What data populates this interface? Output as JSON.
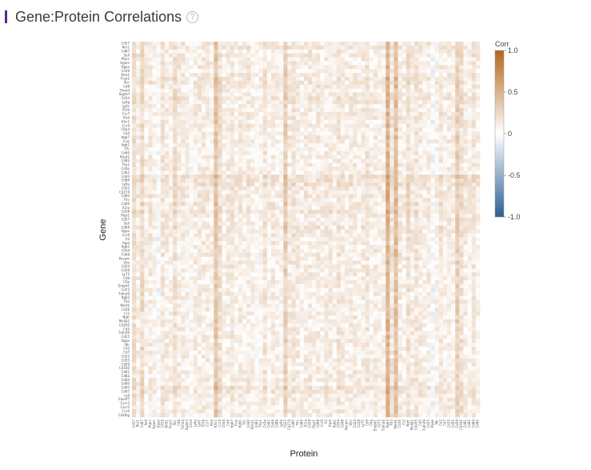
{
  "header": {
    "title": "Gene:Protein Correlations",
    "help_glyph": "?"
  },
  "chart_data": {
    "type": "heatmap",
    "xlabel": "Protein",
    "ylabel": "Gene",
    "colorbar": {
      "title": "Corr",
      "range": [
        -1.0,
        1.0
      ],
      "ticks": [
        "1.0",
        "0.5",
        "0",
        "-0.5",
        "-1.0"
      ],
      "colors": {
        "neg": "#2b5f94",
        "zero": "#ffffff",
        "pos": "#b5651d"
      }
    },
    "n_rows": 96,
    "n_cols": 85,
    "row_labels": [
      "Cd27",
      "Ncr1",
      "Cd87",
      "Sell",
      "Ptprc",
      "Itgam",
      "Itgax",
      "Cd19",
      "Klrb1",
      "Fcgr2",
      "Ncr",
      "Cd8",
      "Timd4",
      "Siglecf",
      "Cd1d",
      "Ly6g",
      "Ly6c",
      "Il2rb",
      "Ccr7",
      "Klrd",
      "Klrc1",
      "Ccr4",
      "Ctla4",
      "Cd4",
      "Itgb7",
      "Icos",
      "Itgb1",
      "Il7r",
      "Cd40",
      "Pdcd1",
      "Cd83",
      "Thy1",
      "Cd3e",
      "Cd62",
      "Cd44",
      "Cd86",
      "Ly6a",
      "Cd22",
      "Cd274",
      "Cd80",
      "Tfrc",
      "Cd69",
      "Il2ra",
      "Cd28",
      "Ptgr1",
      "Cd27",
      "Sell",
      "Cd68",
      "Itgax",
      "Ccr9",
      "Il2",
      "Itgal",
      "Itgb2",
      "Cd34",
      "Cd48",
      "Pecam",
      "Vim",
      "Cd24",
      "Cd38",
      "Ly75",
      "Cd9",
      "Ctla",
      "Entpd1",
      "Cd73",
      "Tnfrsf4",
      "Itgb3",
      "Flt3",
      "Mertk",
      "Cd36",
      "Cr2",
      "Ngfr",
      "Ms4a1",
      "Cd200",
      "Cd5",
      "Tnfrsf9",
      "Cd25",
      "Itgae",
      "Il6r",
      "Cd2",
      "Cd7",
      "Cd33",
      "Cd55",
      "Cd59",
      "Cd160",
      "Cd81",
      "Cd82",
      "Cd84",
      "Cd90",
      "Cd93",
      "Cd97",
      "Ly9",
      "Slamf7",
      "Cxcr3",
      "Cxcr5",
      "Ccr6",
      "Cd40lg"
    ],
    "col_labels": [
      "Cd27",
      "Ncr1",
      "Cd87",
      "Sell",
      "Ptprc",
      "Itgam",
      "Itgax",
      "Cd19",
      "Klrb1",
      "Fcgr2",
      "Ncr",
      "Cd8",
      "Timd4",
      "Siglecf",
      "Cd1d",
      "Ly6g",
      "Ly6c",
      "Il2rb",
      "Ccr7",
      "Klrd",
      "Klrc1",
      "Ccr4",
      "Ctla4",
      "Cd4",
      "Itgb7",
      "Icos",
      "Itgb1",
      "Il7r",
      "Cd40",
      "Pdcd1",
      "Cd83",
      "Thy1",
      "Cd3e",
      "Cd62",
      "Cd44",
      "Cd86",
      "Ly6a",
      "Cd22",
      "Cd274",
      "Cd80",
      "Tfrc",
      "Cd69",
      "Il2ra",
      "Cd28",
      "Ptgr1",
      "Cd68",
      "Ccr9",
      "Il2",
      "Itgal",
      "Itgb2",
      "Cd34",
      "Cd48",
      "Pecam",
      "Vim",
      "Cd24",
      "Cd38",
      "Ly75",
      "Cd9",
      "Ctla",
      "Entpd1",
      "Cd73",
      "Tnfrsf4",
      "Itgb3",
      "Flt3",
      "Mertk",
      "Cd36",
      "Cr2",
      "Ngfr",
      "Ms4a1",
      "Cd200",
      "Cd5",
      "Tnfrsf9",
      "Cd25",
      "Itgae",
      "Il6r",
      "Cd2",
      "Cd7",
      "Cd33",
      "Cd55",
      "Cd59",
      "Cd160",
      "Cd81",
      "Cd82",
      "Cd84",
      "Cd90"
    ],
    "column_strength": [
      0.2,
      0.1,
      0.25,
      0.05,
      0.1,
      0.02,
      -0.08,
      0.15,
      0.1,
      0.05,
      0.2,
      0.1,
      0.1,
      0.05,
      0.0,
      0.08,
      0.1,
      0.1,
      0.1,
      0.05,
      0.45,
      0.2,
      0.05,
      0.1,
      0.15,
      0.05,
      0.1,
      0.05,
      0.1,
      0.05,
      0.0,
      0.05,
      0.15,
      0.05,
      0.1,
      0.05,
      0.02,
      0.35,
      0.1,
      0.15,
      0.1,
      0.05,
      0.1,
      0.1,
      0.05,
      0.1,
      0.05,
      0.1,
      0.1,
      0.05,
      0.15,
      0.1,
      0.05,
      0.1,
      0.1,
      0.05,
      0.1,
      0.15,
      0.05,
      0.1,
      0.05,
      0.05,
      0.6,
      0.15,
      0.5,
      0.1,
      0.05,
      0.2,
      0.1,
      0.15,
      0.1,
      0.05,
      0.1,
      -0.1,
      0.05,
      0.15,
      0.05,
      0.1,
      0.05,
      0.35,
      0.2,
      0.1,
      0.05,
      0.15,
      0.05
    ],
    "row_strength": [
      0.1,
      0.15,
      0.05,
      0.1,
      0.05,
      0.05,
      0.1,
      0.05,
      0.1,
      0.15,
      0.15,
      0.1,
      0.05,
      0.1,
      0.15,
      0.1,
      0.05,
      0.05,
      0.1,
      0.1,
      0.05,
      0.1,
      0.05,
      0.05,
      0.1,
      0.05,
      0.05,
      0.0,
      0.05,
      0.05,
      0.05,
      0.05,
      0.05,
      0.05,
      0.25,
      0.2,
      0.2,
      0.15,
      0.1,
      0.15,
      0.1,
      0.15,
      0.1,
      0.2,
      0.1,
      0.05,
      0.1,
      0.15,
      0.1,
      0.1,
      0.05,
      0.05,
      0.05,
      0.05,
      0.1,
      0.05,
      0.05,
      0.05,
      0.05,
      0.05,
      0.05,
      0.05,
      0.05,
      0.05,
      0.05,
      0.05,
      0.05,
      0.05,
      0.05,
      0.05,
      0.05,
      0.05,
      0.05,
      0.05,
      0.05,
      0.05,
      0.05,
      0.05,
      0.05,
      0.05,
      0.05,
      0.05,
      0.05,
      0.05,
      0.1,
      0.05,
      0.1,
      0.05,
      0.2,
      0.15,
      0.1,
      0.05,
      0.05,
      0.05,
      0.05,
      0.05
    ]
  }
}
